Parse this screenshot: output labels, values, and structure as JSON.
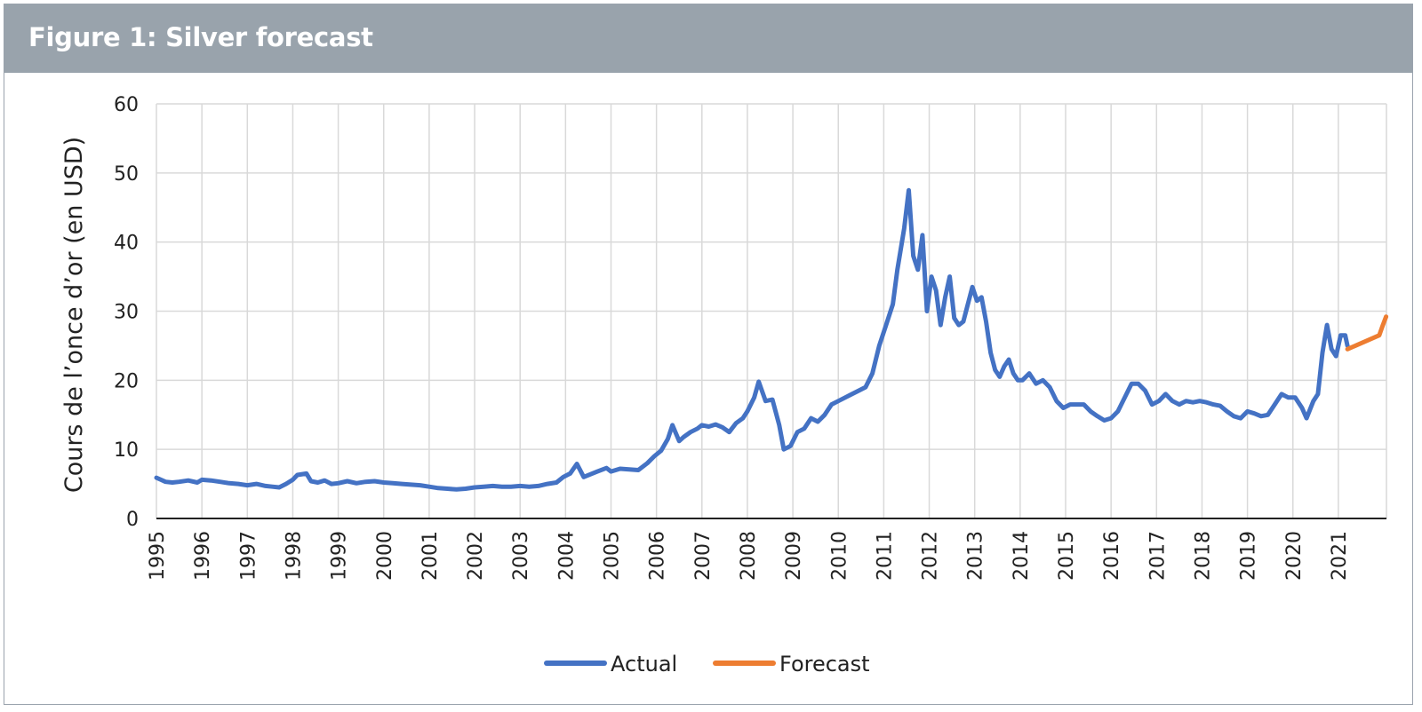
{
  "figure": {
    "title": "Figure 1: Silver forecast"
  },
  "colors": {
    "header_bg": "#99a3ac",
    "actual": "#4472c4",
    "forecast": "#ed7d31",
    "grid": "#d9d9d9"
  },
  "chart_data": {
    "type": "line",
    "title": "",
    "xlabel": "",
    "ylabel": "Cours de l’once d’or (en USD)",
    "xlim": [
      1995,
      2021.92
    ],
    "ylim": [
      0,
      60
    ],
    "yticks": [
      0,
      10,
      20,
      30,
      40,
      50,
      60
    ],
    "xticks": [
      "1995",
      "1996",
      "1997",
      "1998",
      "1999",
      "2000",
      "2001",
      "2002",
      "2003",
      "2004",
      "2005",
      "2006",
      "2007",
      "2008",
      "2009",
      "2010",
      "2011",
      "2012",
      "2013",
      "2014",
      "2015",
      "2016",
      "2017",
      "2018",
      "2019",
      "2020",
      "2021"
    ],
    "grid": true,
    "legend_position": "bottom",
    "series": [
      {
        "name": "Actual",
        "color": "#4472c4",
        "points": [
          [
            1995.0,
            5.9
          ],
          [
            1995.1,
            5.6
          ],
          [
            1995.2,
            5.3
          ],
          [
            1995.35,
            5.2
          ],
          [
            1995.5,
            5.3
          ],
          [
            1995.7,
            5.5
          ],
          [
            1995.9,
            5.2
          ],
          [
            1996.0,
            5.6
          ],
          [
            1996.2,
            5.5
          ],
          [
            1996.4,
            5.3
          ],
          [
            1996.6,
            5.1
          ],
          [
            1996.8,
            5.0
          ],
          [
            1997.0,
            4.8
          ],
          [
            1997.2,
            5.0
          ],
          [
            1997.4,
            4.7
          ],
          [
            1997.55,
            4.6
          ],
          [
            1997.7,
            4.5
          ],
          [
            1997.85,
            5.0
          ],
          [
            1998.0,
            5.6
          ],
          [
            1998.1,
            6.3
          ],
          [
            1998.3,
            6.5
          ],
          [
            1998.4,
            5.4
          ],
          [
            1998.55,
            5.2
          ],
          [
            1998.7,
            5.5
          ],
          [
            1998.85,
            5.0
          ],
          [
            1999.0,
            5.1
          ],
          [
            1999.2,
            5.4
          ],
          [
            1999.4,
            5.1
          ],
          [
            1999.6,
            5.3
          ],
          [
            1999.8,
            5.4
          ],
          [
            2000.0,
            5.2
          ],
          [
            2000.2,
            5.1
          ],
          [
            2000.4,
            5.0
          ],
          [
            2000.6,
            4.9
          ],
          [
            2000.8,
            4.8
          ],
          [
            2001.0,
            4.6
          ],
          [
            2001.2,
            4.4
          ],
          [
            2001.4,
            4.3
          ],
          [
            2001.6,
            4.2
          ],
          [
            2001.8,
            4.3
          ],
          [
            2002.0,
            4.5
          ],
          [
            2002.2,
            4.6
          ],
          [
            2002.4,
            4.7
          ],
          [
            2002.6,
            4.6
          ],
          [
            2002.8,
            4.6
          ],
          [
            2003.0,
            4.7
          ],
          [
            2003.2,
            4.6
          ],
          [
            2003.4,
            4.7
          ],
          [
            2003.6,
            5.0
          ],
          [
            2003.8,
            5.2
          ],
          [
            2003.95,
            6.0
          ],
          [
            2004.1,
            6.5
          ],
          [
            2004.25,
            7.9
          ],
          [
            2004.4,
            6.0
          ],
          [
            2004.55,
            6.4
          ],
          [
            2004.7,
            6.8
          ],
          [
            2004.9,
            7.3
          ],
          [
            2005.0,
            6.8
          ],
          [
            2005.2,
            7.2
          ],
          [
            2005.4,
            7.1
          ],
          [
            2005.6,
            7.0
          ],
          [
            2005.8,
            8.0
          ],
          [
            2005.95,
            9.0
          ],
          [
            2006.1,
            9.8
          ],
          [
            2006.25,
            11.5
          ],
          [
            2006.35,
            13.5
          ],
          [
            2006.5,
            11.2
          ],
          [
            2006.6,
            11.8
          ],
          [
            2006.75,
            12.5
          ],
          [
            2006.9,
            13.0
          ],
          [
            2007.0,
            13.5
          ],
          [
            2007.15,
            13.3
          ],
          [
            2007.3,
            13.6
          ],
          [
            2007.45,
            13.2
          ],
          [
            2007.6,
            12.5
          ],
          [
            2007.75,
            13.8
          ],
          [
            2007.9,
            14.5
          ],
          [
            2008.0,
            15.5
          ],
          [
            2008.15,
            17.5
          ],
          [
            2008.25,
            19.8
          ],
          [
            2008.4,
            17.0
          ],
          [
            2008.55,
            17.2
          ],
          [
            2008.7,
            13.5
          ],
          [
            2008.8,
            10.0
          ],
          [
            2008.95,
            10.5
          ],
          [
            2009.1,
            12.5
          ],
          [
            2009.25,
            13.0
          ],
          [
            2009.4,
            14.5
          ],
          [
            2009.55,
            14.0
          ],
          [
            2009.7,
            15.0
          ],
          [
            2009.85,
            16.5
          ],
          [
            2010.0,
            17.0
          ],
          [
            2010.15,
            17.5
          ],
          [
            2010.3,
            18.0
          ],
          [
            2010.45,
            18.5
          ],
          [
            2010.6,
            19.0
          ],
          [
            2010.75,
            21.0
          ],
          [
            2010.9,
            25.0
          ],
          [
            2011.05,
            28.0
          ],
          [
            2011.2,
            31.0
          ],
          [
            2011.3,
            36.0
          ],
          [
            2011.45,
            42.0
          ],
          [
            2011.55,
            47.5
          ],
          [
            2011.65,
            38.0
          ],
          [
            2011.75,
            36.0
          ],
          [
            2011.85,
            41.0
          ],
          [
            2011.95,
            30.0
          ],
          [
            2012.05,
            35.0
          ],
          [
            2012.15,
            33.0
          ],
          [
            2012.25,
            28.0
          ],
          [
            2012.35,
            32.0
          ],
          [
            2012.45,
            35.0
          ],
          [
            2012.55,
            29.0
          ],
          [
            2012.65,
            28.0
          ],
          [
            2012.75,
            28.5
          ],
          [
            2012.85,
            31.0
          ],
          [
            2012.95,
            33.5
          ],
          [
            2013.05,
            31.5
          ],
          [
            2013.15,
            32.0
          ],
          [
            2013.25,
            28.5
          ],
          [
            2013.35,
            24.0
          ],
          [
            2013.45,
            21.5
          ],
          [
            2013.55,
            20.5
          ],
          [
            2013.65,
            22.0
          ],
          [
            2013.75,
            23.0
          ],
          [
            2013.85,
            21.0
          ],
          [
            2013.95,
            20.0
          ],
          [
            2014.05,
            20.0
          ],
          [
            2014.2,
            21.0
          ],
          [
            2014.35,
            19.5
          ],
          [
            2014.5,
            20.0
          ],
          [
            2014.65,
            19.0
          ],
          [
            2014.8,
            17.0
          ],
          [
            2014.95,
            16.0
          ],
          [
            2015.1,
            16.5
          ],
          [
            2015.25,
            16.5
          ],
          [
            2015.4,
            16.5
          ],
          [
            2015.55,
            15.5
          ],
          [
            2015.7,
            14.8
          ],
          [
            2015.85,
            14.2
          ],
          [
            2016.0,
            14.5
          ],
          [
            2016.15,
            15.5
          ],
          [
            2016.3,
            17.5
          ],
          [
            2016.45,
            19.5
          ],
          [
            2016.6,
            19.5
          ],
          [
            2016.75,
            18.5
          ],
          [
            2016.9,
            16.5
          ],
          [
            2017.05,
            17.0
          ],
          [
            2017.2,
            18.0
          ],
          [
            2017.35,
            17.0
          ],
          [
            2017.5,
            16.5
          ],
          [
            2017.65,
            17.0
          ],
          [
            2017.8,
            16.8
          ],
          [
            2017.95,
            17.0
          ],
          [
            2018.1,
            16.8
          ],
          [
            2018.25,
            16.5
          ],
          [
            2018.4,
            16.3
          ],
          [
            2018.55,
            15.5
          ],
          [
            2018.7,
            14.8
          ],
          [
            2018.85,
            14.5
          ],
          [
            2019.0,
            15.5
          ],
          [
            2019.15,
            15.2
          ],
          [
            2019.3,
            14.8
          ],
          [
            2019.45,
            15.0
          ],
          [
            2019.6,
            16.5
          ],
          [
            2019.75,
            18.0
          ],
          [
            2019.9,
            17.5
          ],
          [
            2020.05,
            17.5
          ],
          [
            2020.2,
            16.0
          ],
          [
            2020.3,
            14.5
          ],
          [
            2020.45,
            17.0
          ],
          [
            2020.55,
            18.0
          ],
          [
            2020.65,
            24.0
          ],
          [
            2020.75,
            28.0
          ],
          [
            2020.85,
            24.5
          ],
          [
            2020.95,
            23.5
          ],
          [
            2021.05,
            26.5
          ],
          [
            2021.15,
            26.5
          ],
          [
            2021.2,
            25.0
          ]
        ]
      },
      {
        "name": "Forecast",
        "color": "#ed7d31",
        "points": [
          [
            2021.2,
            24.5
          ],
          [
            2021.9,
            26.5
          ],
          [
            2021.98,
            28.0
          ],
          [
            2022.05,
            29.2
          ]
        ]
      }
    ]
  }
}
